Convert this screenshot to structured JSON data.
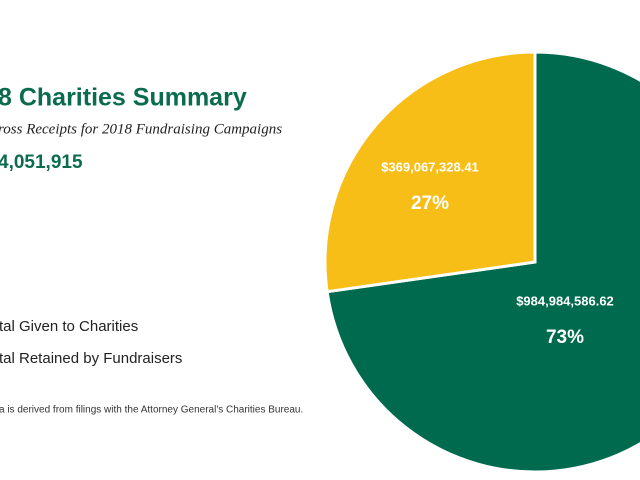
{
  "chart_data": {
    "type": "pie",
    "title": "8 Charities Summary",
    "subtitle": "ross Receipts for 2018 Fundraising Campaigns",
    "total": "4,051,915",
    "categories": [
      "tal Given to Charities",
      "tal Retained by Fundraisers"
    ],
    "values": [
      984984586.62,
      369067328.41
    ],
    "value_labels": [
      "$984,984,586.62",
      "$369,067,328.41"
    ],
    "percents": [
      73,
      27
    ],
    "percent_labels": [
      "73%",
      "27%"
    ],
    "colors": [
      "#006a4e",
      "#f8be18"
    ],
    "note": "a is derived from filings with the Attorney General's Charities Bureau."
  }
}
